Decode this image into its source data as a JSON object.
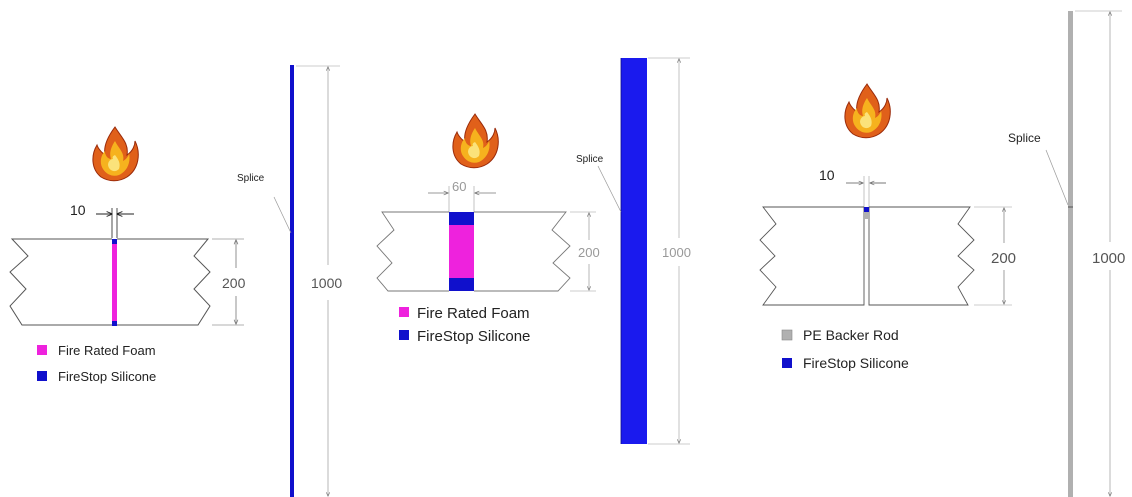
{
  "colors": {
    "foam": "#ee22dd",
    "silicone": "#1010cc",
    "silicone_bright": "#1a1aee",
    "backer_rod": "#b0b0b0",
    "outline": "#555555"
  },
  "icons": [
    "flame-icon"
  ],
  "panels": [
    {
      "gap_dim": "10",
      "depth_dim": "200",
      "length_dim": "1000",
      "splice_label": "Splice",
      "legend": [
        {
          "label": "Fire Rated Foam",
          "color": "#ee22dd"
        },
        {
          "label": "FireStop Silicone",
          "color": "#1010cc"
        }
      ]
    },
    {
      "gap_dim": "60",
      "depth_dim": "200",
      "length_dim": "1000",
      "splice_label": "Splice",
      "legend": [
        {
          "label": "Fire Rated Foam",
          "color": "#ee22dd"
        },
        {
          "label": "FireStop Silicone",
          "color": "#1010cc"
        }
      ]
    },
    {
      "gap_dim": "10",
      "depth_dim": "200",
      "length_dim": "1000",
      "splice_label": "Splice",
      "legend": [
        {
          "label": "PE Backer Rod",
          "color": "#b0b0b0"
        },
        {
          "label": "FireStop Silicone",
          "color": "#1010cc"
        }
      ]
    }
  ]
}
